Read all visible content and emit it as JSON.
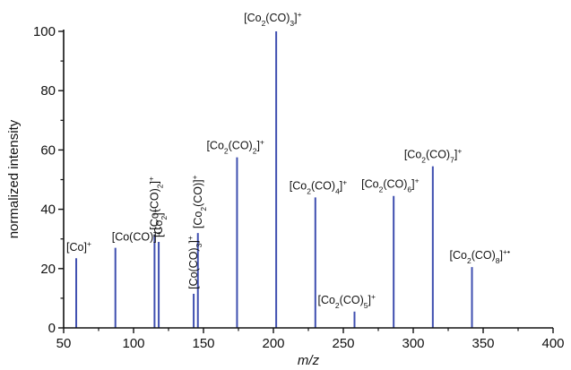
{
  "chart_data": {
    "type": "bar",
    "title": "",
    "xlabel": "m/z",
    "ylabel": "normalized intensity",
    "xlim": [
      50,
      400
    ],
    "ylim": [
      0,
      100
    ],
    "xticks": [
      50,
      100,
      150,
      200,
      250,
      300,
      350,
      400
    ],
    "yticks": [
      0,
      20,
      40,
      60,
      80,
      100
    ],
    "grid": false,
    "bar_color": "#3f4fb0",
    "series": [
      {
        "values": [
          {
            "x": 59,
            "y": 23.5
          },
          {
            "x": 87,
            "y": 27
          },
          {
            "x": 115,
            "y": 31.5
          },
          {
            "x": 118,
            "y": 29
          },
          {
            "x": 143,
            "y": 11.5
          },
          {
            "x": 146,
            "y": 32
          },
          {
            "x": 174,
            "y": 57.5
          },
          {
            "x": 202,
            "y": 100
          },
          {
            "x": 230,
            "y": 44
          },
          {
            "x": 258,
            "y": 5.5
          },
          {
            "x": 286,
            "y": 44.5
          },
          {
            "x": 314,
            "y": 54.5
          },
          {
            "x": 342,
            "y": 20.5
          }
        ]
      }
    ],
    "annotations": [
      {
        "text": "[Co]+",
        "x": 59,
        "rotated": false
      },
      {
        "text": "[Co(CO)]+",
        "x": 87,
        "rotated": false
      },
      {
        "text": "[Co(CO)2]+",
        "x": 115,
        "rotated": true
      },
      {
        "text": "[Co2]+",
        "x": 118,
        "rotated": true
      },
      {
        "text": "[Co(CO)3]+",
        "x": 143,
        "rotated": true
      },
      {
        "text": "[Co2(CO)]+",
        "x": 146,
        "rotated": true
      },
      {
        "text": "[Co2(CO)2]+",
        "x": 174,
        "rotated": false
      },
      {
        "text": "[Co2(CO)3]+",
        "x": 202,
        "rotated": false
      },
      {
        "text": "[Co2(CO)4]+",
        "x": 230,
        "rotated": false
      },
      {
        "text": "[Co2(CO)5]+",
        "x": 258,
        "rotated": false
      },
      {
        "text": "[Co2(CO)6]+",
        "x": 286,
        "rotated": false
      },
      {
        "text": "[Co2(CO)7]+",
        "x": 314,
        "rotated": false
      },
      {
        "text": "[Co2(CO)8]+•",
        "x": 342,
        "rotated": false
      }
    ]
  }
}
